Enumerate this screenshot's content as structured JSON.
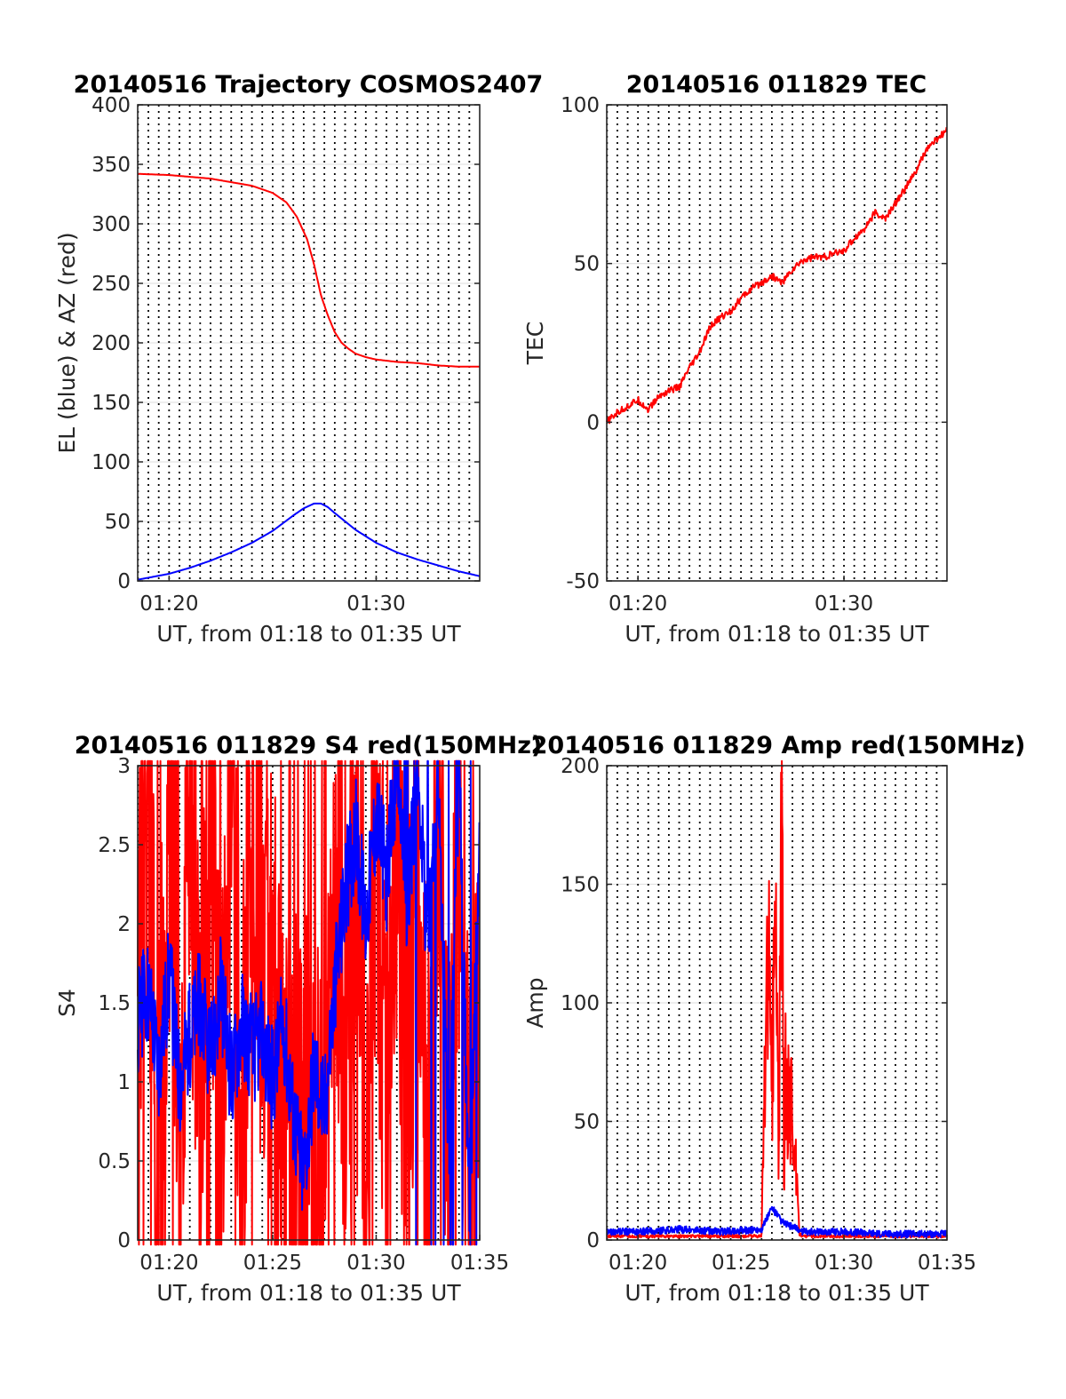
{
  "colors": {
    "red_series": "#ff0000",
    "blue_series": "#0000ff",
    "grid": "#e6e6e6",
    "dotted_grid": "#000000"
  },
  "chart_data": [
    {
      "id": "trajectory",
      "type": "line",
      "title": "20140516 Trajectory COSMOS2407",
      "xlabel": "UT, from 01:18 to 01:35 UT",
      "ylabel": "EL (blue) & AZ (red)",
      "xlim": [
        "01:18:29",
        "01:35:00"
      ],
      "ylim": [
        0,
        400
      ],
      "yticks": [
        0,
        50,
        100,
        150,
        200,
        250,
        300,
        350,
        400
      ],
      "xticks": [
        "01:20",
        "01:30"
      ],
      "grid": "horizontal solid; vertical dotted every 30 s",
      "series": [
        {
          "color": "red",
          "x": [
            "01:18:29",
            "01:20:00",
            "01:22:00",
            "01:24:00",
            "01:25:00",
            "01:25:40",
            "01:26:10",
            "01:26:40",
            "01:27:00",
            "01:27:20",
            "01:27:40",
            "01:28:00",
            "01:28:20",
            "01:28:40",
            "01:29:00",
            "01:29:30",
            "01:30:00",
            "01:31:00",
            "01:32:00",
            "01:33:00",
            "01:34:00",
            "01:35:00"
          ],
          "y": [
            342,
            341,
            338,
            332,
            326,
            318,
            306,
            287,
            266,
            240,
            223,
            209,
            200,
            195,
            191,
            188,
            186,
            184,
            183,
            181,
            180,
            180
          ]
        },
        {
          "color": "blue",
          "x": [
            "01:18:29",
            "01:20:00",
            "01:21:00",
            "01:22:00",
            "01:23:00",
            "01:24:00",
            "01:25:00",
            "01:26:00",
            "01:26:30",
            "01:27:00",
            "01:27:20",
            "01:27:40",
            "01:28:00",
            "01:28:30",
            "01:29:00",
            "01:30:00",
            "01:31:00",
            "01:32:00",
            "01:33:00",
            "01:34:00",
            "01:35:00"
          ],
          "y": [
            1,
            6,
            11,
            17,
            24,
            32,
            42,
            55,
            61,
            65,
            65,
            62,
            57,
            50,
            43,
            32,
            24,
            18,
            13,
            8,
            4
          ]
        }
      ]
    },
    {
      "id": "tec",
      "type": "line",
      "title": "20140516 011829 TEC",
      "xlabel": "UT, from 01:18 to 01:35 UT",
      "ylabel": "TEC",
      "xlim": [
        "01:18:29",
        "01:35:00"
      ],
      "ylim": [
        -50,
        100
      ],
      "yticks": [
        -50,
        0,
        50,
        100
      ],
      "xticks": [
        "01:20",
        "01:30"
      ],
      "grid": "horizontal solid; vertical dotted every 30 s",
      "series": [
        {
          "color": "red",
          "x": [
            "01:18:29",
            "01:19:00",
            "01:19:30",
            "01:20:00",
            "01:20:30",
            "01:21:00",
            "01:21:30",
            "01:22:00",
            "01:22:30",
            "01:23:00",
            "01:23:30",
            "01:24:00",
            "01:24:30",
            "01:25:00",
            "01:25:30",
            "01:26:00",
            "01:26:30",
            "01:27:00",
            "01:27:30",
            "01:28:00",
            "01:28:30",
            "01:29:00",
            "01:29:30",
            "01:30:00",
            "01:30:30",
            "01:31:00",
            "01:31:30",
            "01:32:00",
            "01:32:30",
            "01:33:00",
            "01:33:30",
            "01:34:00",
            "01:34:30",
            "01:35:00"
          ],
          "y": [
            0,
            3,
            5,
            7,
            4,
            8,
            10,
            11,
            17,
            22,
            30,
            33,
            35,
            39,
            42,
            44,
            46,
            44,
            48,
            51,
            52,
            52,
            53,
            54,
            58,
            61,
            66,
            64,
            69,
            74,
            79,
            86,
            89,
            92
          ]
        }
      ]
    },
    {
      "id": "s4",
      "type": "line",
      "title": "20140516 011829 S4 red(150MHz)",
      "xlabel": "UT, from 01:18 to 01:35 UT",
      "ylabel": "S4",
      "xlim": [
        "01:18:29",
        "01:35:00"
      ],
      "ylim": [
        0,
        3
      ],
      "yticks": [
        0,
        0.5,
        1,
        1.5,
        2,
        2.5,
        3
      ],
      "xticks": [
        "01:20",
        "01:25",
        "01:30",
        "01:35"
      ],
      "grid": "horizontal solid; vertical dotted every 30 s",
      "series": [
        {
          "color": "red",
          "x": [
            "01:18:29",
            "01:19:00",
            "01:19:30",
            "01:20:00",
            "01:20:30",
            "01:21:00",
            "01:21:30",
            "01:22:00",
            "01:22:30",
            "01:23:00",
            "01:23:30",
            "01:24:00",
            "01:24:30",
            "01:25:00",
            "01:25:30",
            "01:26:00",
            "01:26:30",
            "01:27:00",
            "01:27:30",
            "01:28:00",
            "01:28:30",
            "01:29:00",
            "01:29:30",
            "01:30:00",
            "01:30:30",
            "01:31:00",
            "01:31:30",
            "01:32:00",
            "01:32:30",
            "01:33:00",
            "01:33:30",
            "01:34:00",
            "01:34:30",
            "01:35:00"
          ],
          "y": [
            1.4,
            3,
            0.2,
            3,
            0.1,
            3,
            0.5,
            3,
            0.3,
            3,
            0.6,
            3,
            1.2,
            1.5,
            0.6,
            1.0,
            0.5,
            0.35,
            0.15,
            3,
            0.8,
            2.2,
            0.1,
            3,
            0.3,
            2.8,
            0.6,
            3,
            0.5,
            3,
            0.3,
            2.6,
            0.4,
            2.1
          ]
        },
        {
          "color": "blue",
          "x": [
            "01:18:29",
            "01:19:00",
            "01:19:30",
            "01:20:00",
            "01:20:30",
            "01:21:00",
            "01:21:30",
            "01:22:00",
            "01:22:30",
            "01:23:00",
            "01:23:30",
            "01:24:00",
            "01:24:30",
            "01:25:00",
            "01:25:30",
            "01:26:00",
            "01:26:30",
            "01:27:00",
            "01:27:30",
            "01:28:00",
            "01:28:30",
            "01:29:00",
            "01:29:30",
            "01:30:00",
            "01:30:30",
            "01:31:00",
            "01:31:30",
            "01:32:00",
            "01:32:30",
            "01:33:00",
            "01:33:30",
            "01:34:00",
            "01:34:30",
            "01:35:00"
          ],
          "y": [
            1.4,
            1.6,
            1.1,
            1.7,
            1.0,
            1.3,
            1.5,
            1.1,
            1.6,
            1.0,
            1.4,
            1.2,
            1.3,
            1.0,
            1.4,
            0.8,
            0.4,
            1.1,
            0.8,
            1.6,
            2.2,
            2.6,
            2.0,
            2.7,
            2.3,
            3.0,
            2.1,
            3.0,
            1.8,
            3.0,
            0.5,
            3.0,
            0.2,
            2.5
          ]
        }
      ]
    },
    {
      "id": "amp",
      "type": "line",
      "title": "20140516 011829 Amp red(150MHz)",
      "xlabel": "UT, from 01:18 to 01:35 UT",
      "ylabel": "Amp",
      "xlim": [
        "01:18:29",
        "01:35:00"
      ],
      "ylim": [
        0,
        200
      ],
      "yticks": [
        0,
        50,
        100,
        150,
        200
      ],
      "xticks": [
        "01:20",
        "01:25",
        "01:30",
        "01:35"
      ],
      "grid": "horizontal solid; vertical dotted every 30 s",
      "series": [
        {
          "color": "red",
          "x": [
            "01:18:29",
            "01:26:00",
            "01:26:10",
            "01:26:20",
            "01:26:30",
            "01:26:40",
            "01:26:50",
            "01:27:00",
            "01:27:05",
            "01:27:10",
            "01:27:20",
            "01:27:30",
            "01:27:40",
            "01:27:50",
            "01:28:00",
            "01:35:00"
          ],
          "y": [
            1,
            1,
            80,
            115,
            60,
            147,
            40,
            195,
            20,
            70,
            55,
            60,
            30,
            2,
            1,
            1
          ]
        },
        {
          "color": "blue",
          "x": [
            "01:18:29",
            "01:20:00",
            "01:22:00",
            "01:24:00",
            "01:26:00",
            "01:26:30",
            "01:27:00",
            "01:27:30",
            "01:28:00",
            "01:30:00",
            "01:32:00",
            "01:35:00"
          ],
          "y": [
            2,
            2,
            3,
            2,
            3,
            12,
            6,
            4,
            2,
            2,
            1,
            1
          ]
        }
      ]
    }
  ]
}
